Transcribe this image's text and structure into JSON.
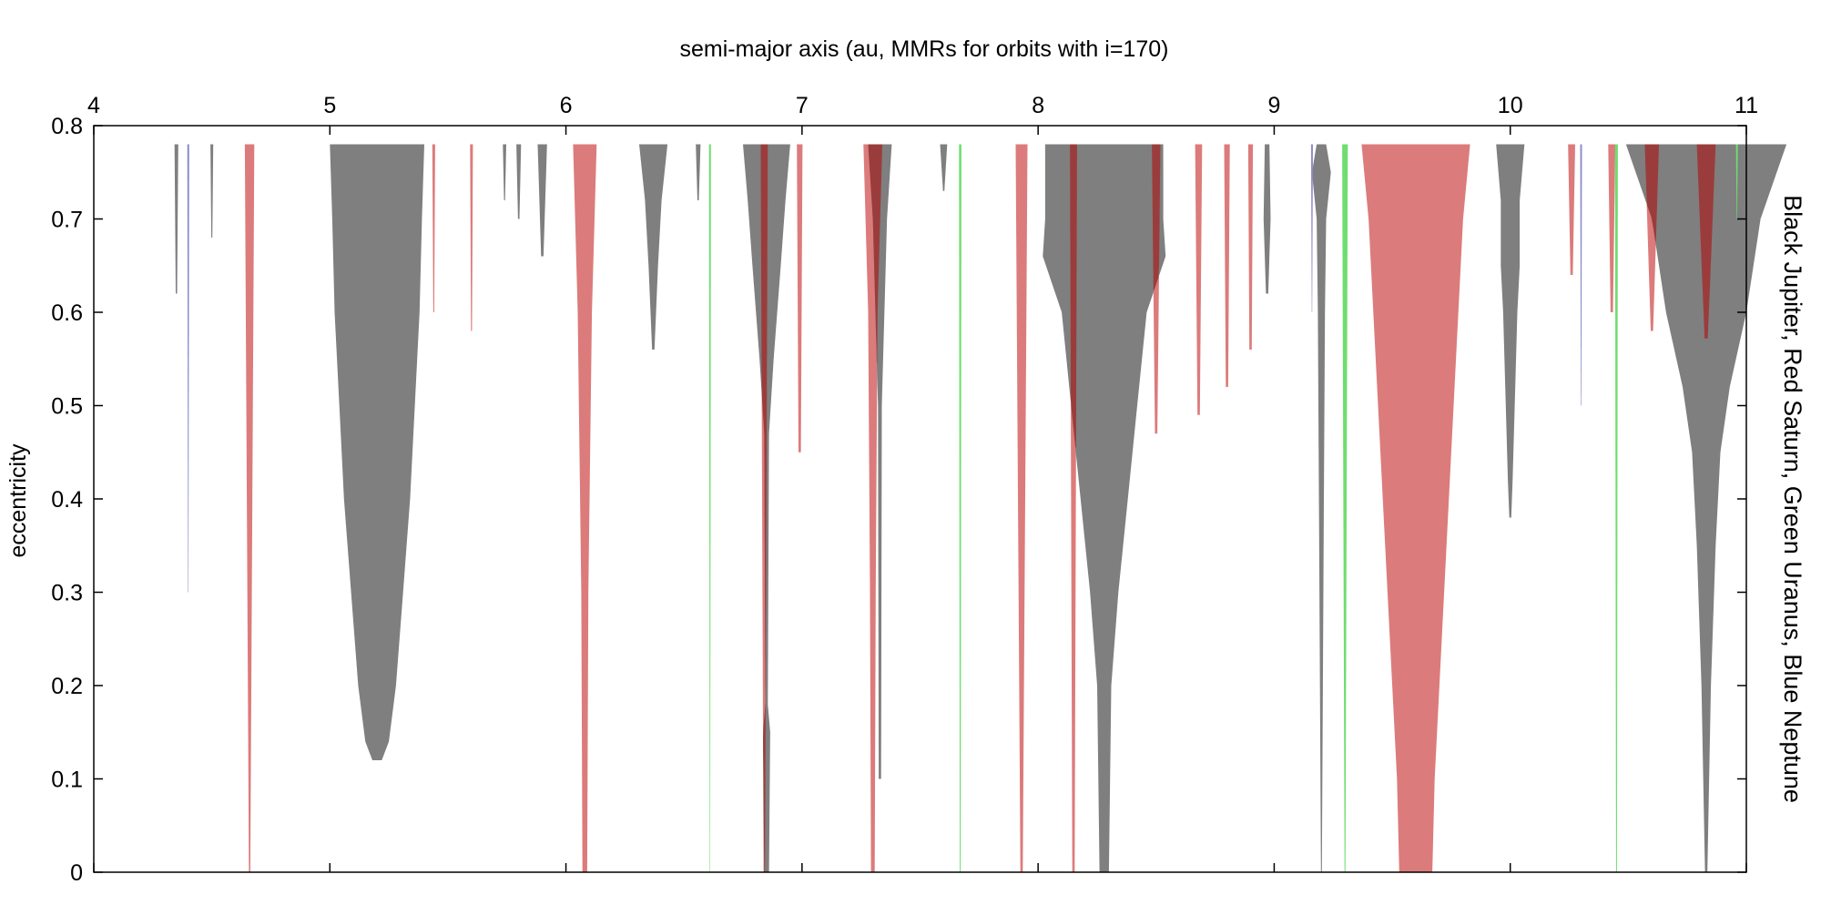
{
  "chart_data": {
    "type": "area",
    "title": "semi-major axis (au, MMRs for orbits with i=170)",
    "xlabel": "",
    "ylabel": "eccentricity",
    "right_label": "Black Jupiter, Red Saturn, Green Uranus, Blue Neptune",
    "xlim": [
      4,
      11
    ],
    "ylim": [
      0,
      0.8
    ],
    "x_ticks": [
      4,
      5,
      6,
      7,
      8,
      9,
      10,
      11
    ],
    "x_tick_labels": [
      "4",
      "5",
      "6",
      "7",
      "8",
      "9",
      "10",
      "11"
    ],
    "y_ticks": [
      0,
      0.1,
      0.2,
      0.3,
      0.4,
      0.5,
      0.6,
      0.7,
      0.8
    ],
    "y_tick_labels": [
      "0",
      "0.1",
      "0.2",
      "0.3",
      "0.4",
      "0.5",
      "0.6",
      "0.7",
      "0.8"
    ],
    "x_axis_position": "top",
    "grid": false,
    "colors": {
      "Jupiter": "#7f7f7f",
      "Saturn": "#dc7b7b",
      "Uranus": "#6fdd6f",
      "Neptune": "#8c8ccc",
      "Jupiter+Saturn overlap": "#9b3c3c"
    },
    "series": [
      {
        "planet": "Saturn",
        "resonances": [
          {
            "center": 4.66,
            "e_min": 0.0,
            "halfwidth": [
              [
                0.0,
                0.003
              ],
              [
                0.78,
                0.02
              ]
            ]
          },
          {
            "center": 6.08,
            "e_min": 0.0,
            "halfwidth": [
              [
                0.0,
                0.01
              ],
              [
                0.3,
                0.015
              ],
              [
                0.6,
                0.03
              ],
              [
                0.78,
                0.05
              ]
            ]
          },
          {
            "center": 6.84,
            "e_min": 0.0,
            "halfwidth": [
              [
                0.0,
                0.003
              ],
              [
                0.78,
                0.015
              ]
            ]
          },
          {
            "center": 6.99,
            "e_min": 0.45,
            "halfwidth": [
              [
                0.45,
                0.005
              ],
              [
                0.78,
                0.012
              ]
            ]
          },
          {
            "center": 7.3,
            "e_min": 0.0,
            "halfwidth": [
              [
                0.0,
                0.008
              ],
              [
                0.3,
                0.012
              ],
              [
                0.6,
                0.02
              ],
              [
                0.78,
                0.04
              ]
            ]
          },
          {
            "center": 7.93,
            "e_min": 0.0,
            "halfwidth": [
              [
                0.0,
                0.005
              ],
              [
                0.78,
                0.025
              ]
            ]
          },
          {
            "center": 8.15,
            "e_min": 0.0,
            "halfwidth": [
              [
                0.0,
                0.005
              ],
              [
                0.78,
                0.015
              ]
            ]
          },
          {
            "center": 8.5,
            "e_min": 0.47,
            "halfwidth": [
              [
                0.47,
                0.005
              ],
              [
                0.78,
                0.018
              ]
            ]
          },
          {
            "center": 8.68,
            "e_min": 0.49,
            "halfwidth": [
              [
                0.49,
                0.005
              ],
              [
                0.78,
                0.015
              ]
            ]
          },
          {
            "center": 8.8,
            "e_min": 0.52,
            "halfwidth": [
              [
                0.52,
                0.005
              ],
              [
                0.78,
                0.012
              ]
            ]
          },
          {
            "center": 8.9,
            "e_min": 0.56,
            "halfwidth": [
              [
                0.56,
                0.005
              ],
              [
                0.78,
                0.01
              ]
            ]
          },
          {
            "center": 9.6,
            "e_min": 0.0,
            "halfwidth": [
              [
                0.0,
                0.07
              ],
              [
                0.1,
                0.08
              ],
              [
                0.2,
                0.1
              ],
              [
                0.3,
                0.12
              ],
              [
                0.4,
                0.14
              ],
              [
                0.5,
                0.16
              ],
              [
                0.6,
                0.18
              ],
              [
                0.7,
                0.2
              ],
              [
                0.78,
                0.23
              ]
            ]
          },
          {
            "center": 10.26,
            "e_min": 0.64,
            "halfwidth": [
              [
                0.64,
                0.005
              ],
              [
                0.78,
                0.015
              ]
            ]
          },
          {
            "center": 10.43,
            "e_min": 0.6,
            "halfwidth": [
              [
                0.6,
                0.005
              ],
              [
                0.78,
                0.015
              ]
            ]
          },
          {
            "center": 10.6,
            "e_min": 0.58,
            "halfwidth": [
              [
                0.58,
                0.005
              ],
              [
                0.78,
                0.03
              ]
            ]
          },
          {
            "center": 10.83,
            "e_min": 0.56,
            "halfwidth": [
              [
                0.56,
                0.005
              ],
              [
                0.78,
                0.04
              ]
            ]
          },
          {
            "center": 5.44,
            "e_min": 0.6,
            "halfwidth": [
              [
                0.6,
                0.002
              ],
              [
                0.78,
                0.006
              ]
            ]
          },
          {
            "center": 5.6,
            "e_min": 0.58,
            "halfwidth": [
              [
                0.58,
                0.002
              ],
              [
                0.78,
                0.006
              ]
            ]
          }
        ]
      },
      {
        "planet": "Jupiter",
        "resonances": [
          {
            "center": 5.2,
            "e_min": 0.12,
            "halfwidth": [
              [
                0.12,
                0.02
              ],
              [
                0.14,
                0.05
              ],
              [
                0.2,
                0.08
              ],
              [
                0.3,
                0.11
              ],
              [
                0.4,
                0.14
              ],
              [
                0.5,
                0.16
              ],
              [
                0.6,
                0.18
              ],
              [
                0.7,
                0.19
              ],
              [
                0.78,
                0.2
              ]
            ]
          },
          {
            "center": 6.37,
            "e_min": 0.56,
            "halfwidth": [
              [
                0.56,
                0.005
              ],
              [
                0.65,
                0.02
              ],
              [
                0.72,
                0.035
              ],
              [
                0.78,
                0.06
              ]
            ]
          },
          {
            "center": 6.85,
            "e_min": 0.0,
            "halfwidth": [
              [
                0.0,
                0.01
              ],
              [
                0.15,
                0.015
              ],
              [
                0.18,
                0.005
              ],
              [
                0.47,
                0.01
              ],
              [
                0.55,
                0.03
              ],
              [
                0.65,
                0.06
              ],
              [
                0.72,
                0.08
              ],
              [
                0.78,
                0.1
              ]
            ]
          },
          {
            "center": 7.33,
            "e_min": 0.1,
            "halfwidth": [
              [
                0.1,
                0.005
              ],
              [
                0.5,
                0.008
              ],
              [
                0.7,
                0.03
              ],
              [
                0.78,
                0.05
              ]
            ]
          },
          {
            "center": 8.28,
            "e_min": 0.0,
            "halfwidth": [
              [
                0.0,
                0.02
              ],
              [
                0.2,
                0.03
              ],
              [
                0.3,
                0.06
              ],
              [
                0.4,
                0.1
              ],
              [
                0.5,
                0.14
              ],
              [
                0.6,
                0.18
              ],
              [
                0.66,
                0.26
              ],
              [
                0.7,
                0.25
              ],
              [
                0.78,
                0.25
              ]
            ]
          },
          {
            "center": 9.2,
            "e_min": 0.0,
            "halfwidth": [
              [
                0.0,
                0.002
              ],
              [
                0.38,
                0.01
              ],
              [
                0.6,
                0.015
              ],
              [
                0.7,
                0.02
              ],
              [
                0.75,
                0.04
              ],
              [
                0.78,
                0.02
              ]
            ]
          },
          {
            "center": 8.97,
            "e_min": 0.62,
            "halfwidth": [
              [
                0.62,
                0.005
              ],
              [
                0.7,
                0.015
              ],
              [
                0.78,
                0.01
              ]
            ]
          },
          {
            "center": 10.0,
            "e_min": 0.38,
            "halfwidth": [
              [
                0.38,
                0.004
              ],
              [
                0.42,
                0.01
              ],
              [
                0.6,
                0.03
              ],
              [
                0.65,
                0.04
              ],
              [
                0.72,
                0.04
              ],
              [
                0.78,
                0.06
              ]
            ]
          },
          {
            "center": 10.83,
            "e_min": 0.0,
            "halfwidth": [
              [
                0.0,
                0.005
              ],
              [
                0.2,
                0.02
              ],
              [
                0.35,
                0.04
              ],
              [
                0.45,
                0.06
              ],
              [
                0.52,
                0.1
              ],
              [
                0.6,
                0.17
              ],
              [
                0.7,
                0.23
              ],
              [
                0.78,
                0.34
              ]
            ]
          },
          {
            "center": 5.9,
            "e_min": 0.66,
            "halfwidth": [
              [
                0.66,
                0.005
              ],
              [
                0.78,
                0.02
              ]
            ]
          },
          {
            "center": 5.8,
            "e_min": 0.7,
            "halfwidth": [
              [
                0.7,
                0.003
              ],
              [
                0.78,
                0.01
              ]
            ]
          },
          {
            "center": 5.74,
            "e_min": 0.72,
            "halfwidth": [
              [
                0.72,
                0.002
              ],
              [
                0.78,
                0.007
              ]
            ]
          },
          {
            "center": 4.35,
            "e_min": 0.62,
            "halfwidth": [
              [
                0.62,
                0.003
              ],
              [
                0.78,
                0.008
              ]
            ]
          },
          {
            "center": 4.5,
            "e_min": 0.68,
            "halfwidth": [
              [
                0.68,
                0.002
              ],
              [
                0.78,
                0.006
              ]
            ]
          },
          {
            "center": 6.56,
            "e_min": 0.72,
            "halfwidth": [
              [
                0.72,
                0.003
              ],
              [
                0.78,
                0.01
              ]
            ]
          },
          {
            "center": 7.6,
            "e_min": 0.73,
            "halfwidth": [
              [
                0.73,
                0.003
              ],
              [
                0.78,
                0.015
              ]
            ]
          }
        ]
      },
      {
        "planet": "Uranus",
        "resonances": [
          {
            "center": 9.3,
            "e_min": 0.0,
            "halfwidth": [
              [
                0.0,
                0.002
              ],
              [
                0.78,
                0.012
              ]
            ]
          },
          {
            "center": 7.67,
            "e_min": 0.0,
            "halfwidth": [
              [
                0.0,
                0.002
              ],
              [
                0.78,
                0.005
              ]
            ]
          },
          {
            "center": 6.61,
            "e_min": 0.0,
            "halfwidth": [
              [
                0.0,
                0.001
              ],
              [
                0.78,
                0.004
              ]
            ]
          },
          {
            "center": 10.45,
            "e_min": 0.0,
            "halfwidth": [
              [
                0.0,
                0.002
              ],
              [
                0.78,
                0.006
              ]
            ]
          },
          {
            "center": 10.96,
            "e_min": 0.7,
            "halfwidth": [
              [
                0.7,
                0.001
              ],
              [
                0.78,
                0.004
              ]
            ]
          }
        ]
      },
      {
        "planet": "Neptune",
        "resonances": [
          {
            "center": 4.4,
            "e_min": 0.3,
            "halfwidth": [
              [
                0.3,
                0.001
              ],
              [
                0.78,
                0.004
              ]
            ]
          },
          {
            "center": 10.3,
            "e_min": 0.5,
            "halfwidth": [
              [
                0.5,
                0.001
              ],
              [
                0.78,
                0.004
              ]
            ]
          },
          {
            "center": 9.16,
            "e_min": 0.6,
            "halfwidth": [
              [
                0.6,
                0.001
              ],
              [
                0.78,
                0.004
              ]
            ]
          }
        ]
      }
    ]
  }
}
